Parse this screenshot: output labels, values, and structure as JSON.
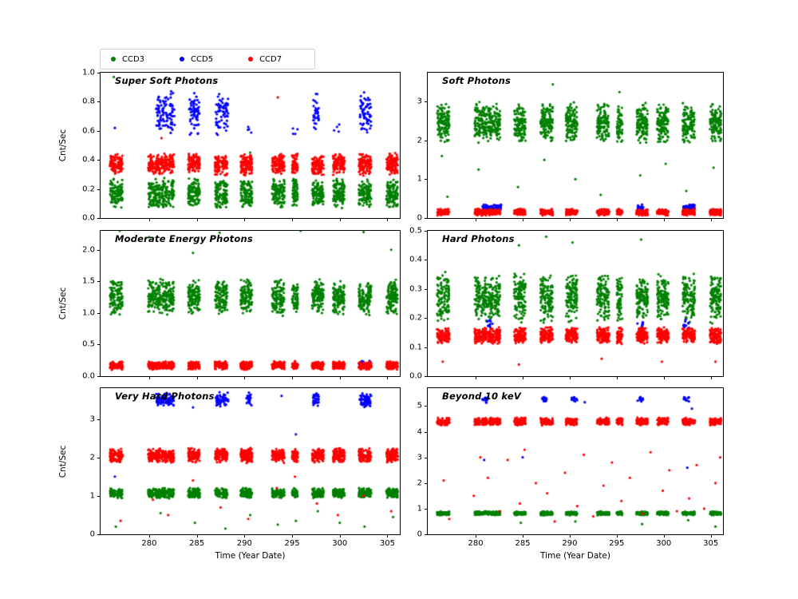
{
  "figure": {
    "background": "#ffffff"
  },
  "legend": {
    "items": [
      {
        "label": "CCD3",
        "color": "#008000"
      },
      {
        "label": "CCD5",
        "color": "#0000ff"
      },
      {
        "label": "CCD7",
        "color": "#ff0000"
      }
    ]
  },
  "windows": {
    "all": [
      276.2,
      276.9,
      280.2,
      280.9,
      281.6,
      282.3,
      284.4,
      285.0,
      287.2,
      287.9,
      289.9,
      290.5,
      293.2,
      293.9,
      295.3,
      297.4,
      298.0,
      299.6,
      300.2,
      302.3,
      303.0,
      305.2,
      305.8
    ],
    "width": 0.6
  },
  "chart_data": [
    {
      "type": "scatter",
      "title": "Super Soft Photons",
      "ylabel": "Cnt/Sec",
      "xlabel": "",
      "xlim": [
        274.9,
        306.3
      ],
      "xticks": [
        280,
        285,
        290,
        295,
        300,
        305
      ],
      "xtick_labels": [
        "280",
        "285",
        "290",
        "295",
        "300",
        "305"
      ],
      "show_xtick_labels": false,
      "ylim": [
        0,
        1.0
      ],
      "ytick_values": [
        0,
        0.2,
        0.4,
        0.6,
        0.8,
        1.0
      ],
      "ytick_labels": [
        "0.0",
        "0.2",
        "0.4",
        "0.6",
        "0.8",
        "1.0"
      ],
      "series": [
        {
          "name": "CCD3",
          "color": "#008000",
          "bands": [
            {
              "windows": "all",
              "y": 0.17,
              "spread": 0.11,
              "n": 55
            }
          ],
          "points": [
            [
              276.3,
              0.97
            ],
            [
              290.6,
              0.45
            ],
            [
              284.7,
              0.42
            ]
          ]
        },
        {
          "name": "CCD5",
          "color": "#0000ff",
          "bands": [
            {
              "windows": [
                281.0,
                281.7,
                282.4,
                284.5,
                285.0,
                287.3,
                288.0,
                297.5,
                302.4,
                303.0
              ],
              "y": 0.72,
              "spread": 0.16,
              "n": 32
            },
            {
              "windows": [
                290.5,
                295.3,
                299.7
              ],
              "y": 0.6,
              "spread": 0.05,
              "n": 4
            }
          ],
          "points": [
            [
              276.4,
              0.62
            ]
          ]
        },
        {
          "name": "CCD7",
          "color": "#ff0000",
          "bands": [
            {
              "windows": "all",
              "y": 0.37,
              "spread": 0.08,
              "n": 55
            }
          ],
          "points": [
            [
              293.5,
              0.83
            ],
            [
              281.3,
              0.55
            ]
          ]
        }
      ]
    },
    {
      "type": "scatter",
      "title": "Soft Photons",
      "ylabel": "",
      "xlabel": "",
      "xlim": [
        274.9,
        306.3
      ],
      "xticks": [
        280,
        285,
        290,
        295,
        300,
        305
      ],
      "xtick_labels": [
        "280",
        "285",
        "290",
        "295",
        "300",
        "305"
      ],
      "show_xtick_labels": false,
      "ylim": [
        0,
        3.75
      ],
      "ytick_values": [
        0,
        1,
        2,
        3
      ],
      "ytick_labels": [
        "0",
        "1",
        "2",
        "3"
      ],
      "series": [
        {
          "name": "CCD3",
          "color": "#008000",
          "bands": [
            {
              "windows": "all",
              "y": 2.45,
              "spread": 0.55,
              "n": 60
            }
          ],
          "points": [
            [
              277.0,
              0.55
            ],
            [
              280.3,
              1.25
            ],
            [
              284.5,
              0.8
            ],
            [
              287.3,
              1.5
            ],
            [
              290.6,
              1.0
            ],
            [
              293.3,
              0.6
            ],
            [
              295.3,
              3.25
            ],
            [
              297.5,
              1.1
            ],
            [
              300.2,
              1.4
            ],
            [
              302.4,
              0.7
            ],
            [
              305.3,
              1.3
            ],
            [
              288.2,
              3.45
            ],
            [
              276.4,
              1.6
            ]
          ]
        },
        {
          "name": "CCD5",
          "color": "#0000ff",
          "bands": [
            {
              "windows": [
                281.0,
                281.7,
                282.4,
                297.5,
                302.4,
                303.0
              ],
              "y": 0.27,
              "spread": 0.09,
              "n": 28
            }
          ],
          "points": []
        },
        {
          "name": "CCD7",
          "color": "#ff0000",
          "bands": [
            {
              "windows": "all",
              "y": 0.15,
              "spread": 0.09,
              "n": 50
            }
          ],
          "points": []
        }
      ]
    },
    {
      "type": "scatter",
      "title": "Moderate Energy Photons",
      "ylabel": "Cnt/Sec",
      "xlabel": "",
      "xlim": [
        274.9,
        306.3
      ],
      "xticks": [
        280,
        285,
        290,
        295,
        300,
        305
      ],
      "xtick_labels": [
        "280",
        "285",
        "290",
        "295",
        "300",
        "305"
      ],
      "show_xtick_labels": false,
      "ylim": [
        0,
        2.3
      ],
      "ytick_values": [
        0,
        0.5,
        1.0,
        1.5,
        2.0
      ],
      "ytick_labels": [
        "0.0",
        "0.5",
        "1.0",
        "1.5",
        "2.0"
      ],
      "series": [
        {
          "name": "CCD3",
          "color": "#008000",
          "bands": [
            {
              "windows": "all",
              "y": 1.25,
              "spread": 0.3,
              "n": 60
            }
          ],
          "points": [
            [
              276.9,
              2.3
            ],
            [
              280.0,
              2.2
            ],
            [
              287.4,
              2.27
            ],
            [
              295.9,
              2.3
            ],
            [
              302.5,
              2.28
            ],
            [
              284.6,
              1.95
            ],
            [
              305.4,
              2.0
            ]
          ]
        },
        {
          "name": "CCD5",
          "color": "#0000ff",
          "bands": [
            {
              "windows": [
                302.3,
                303.0
              ],
              "y": 0.21,
              "spread": 0.05,
              "n": 12
            }
          ],
          "points": [
            [
              281.5,
              0.22
            ],
            [
              297.6,
              0.2
            ]
          ]
        },
        {
          "name": "CCD7",
          "color": "#ff0000",
          "bands": [
            {
              "windows": "all",
              "y": 0.17,
              "spread": 0.07,
              "n": 52
            }
          ],
          "points": []
        }
      ]
    },
    {
      "type": "scatter",
      "title": "Hard Photons",
      "ylabel": "",
      "xlabel": "",
      "xlim": [
        274.9,
        306.3
      ],
      "xticks": [
        280,
        285,
        290,
        295,
        300,
        305
      ],
      "xtick_labels": [
        "280",
        "285",
        "290",
        "295",
        "300",
        "305"
      ],
      "show_xtick_labels": false,
      "ylim": [
        0,
        0.5
      ],
      "ytick_values": [
        0,
        0.1,
        0.2,
        0.3,
        0.4,
        0.5
      ],
      "ytick_labels": [
        "0.0",
        "0.1",
        "0.2",
        "0.3",
        "0.4",
        "0.5"
      ],
      "series": [
        {
          "name": "CCD3",
          "color": "#008000",
          "bands": [
            {
              "windows": "all",
              "y": 0.27,
              "spread": 0.09,
              "n": 60
            }
          ],
          "points": [
            [
              287.5,
              0.48
            ],
            [
              297.6,
              0.47
            ],
            [
              290.3,
              0.46
            ],
            [
              284.6,
              0.45
            ]
          ]
        },
        {
          "name": "CCD5",
          "color": "#0000ff",
          "bands": [
            {
              "windows": [
                281.5,
                297.5,
                302.4
              ],
              "y": 0.18,
              "spread": 0.02,
              "n": 10
            }
          ],
          "points": []
        },
        {
          "name": "CCD7",
          "color": "#ff0000",
          "bands": [
            {
              "windows": "all",
              "y": 0.14,
              "spread": 0.03,
              "n": 55
            }
          ],
          "points": [
            [
              276.5,
              0.05
            ],
            [
              284.6,
              0.04
            ],
            [
              293.4,
              0.06
            ],
            [
              305.5,
              0.05
            ],
            [
              299.8,
              0.05
            ]
          ]
        }
      ]
    },
    {
      "type": "scatter",
      "title": "Very Hard Photons",
      "ylabel": "Cnt/Sec",
      "xlabel": "Time (Year Date)",
      "xlim": [
        274.9,
        306.3
      ],
      "xticks": [
        280,
        285,
        290,
        295,
        300,
        305
      ],
      "xtick_labels": [
        "280",
        "285",
        "290",
        "295",
        "300",
        "305"
      ],
      "show_xtick_labels": true,
      "ylim": [
        0,
        3.8
      ],
      "ytick_values": [
        0,
        1,
        2,
        3
      ],
      "ytick_labels": [
        "0",
        "1",
        "2",
        "3"
      ],
      "series": [
        {
          "name": "CCD3",
          "color": "#008000",
          "bands": [
            {
              "windows": "all",
              "y": 1.07,
              "spread": 0.14,
              "n": 55
            }
          ],
          "points": [
            [
              276.5,
              0.2
            ],
            [
              281.2,
              0.55
            ],
            [
              284.8,
              0.3
            ],
            [
              288.0,
              0.15
            ],
            [
              290.6,
              0.5
            ],
            [
              293.5,
              0.25
            ],
            [
              297.7,
              0.6
            ],
            [
              300.0,
              0.3
            ],
            [
              302.6,
              0.2
            ],
            [
              305.6,
              0.45
            ],
            [
              295.4,
              0.35
            ]
          ]
        },
        {
          "name": "CCD5",
          "color": "#0000ff",
          "bands": [
            {
              "windows": [
                281.0,
                281.7,
                282.3,
                287.3,
                288.0,
                290.5,
                297.5,
                302.4,
                303.0
              ],
              "y": 3.5,
              "spread": 0.2,
              "n": 30
            }
          ],
          "points": [
            [
              284.6,
              3.3
            ],
            [
              295.4,
              2.6
            ],
            [
              276.4,
              1.5
            ],
            [
              293.9,
              3.6
            ]
          ]
        },
        {
          "name": "CCD7",
          "color": "#ff0000",
          "bands": [
            {
              "windows": "all",
              "y": 2.05,
              "spread": 0.2,
              "n": 55
            }
          ],
          "points": [
            [
              277.0,
              0.35
            ],
            [
              280.4,
              0.9
            ],
            [
              282.0,
              0.5
            ],
            [
              284.6,
              1.4
            ],
            [
              287.5,
              0.7
            ],
            [
              290.4,
              0.4
            ],
            [
              293.4,
              1.2
            ],
            [
              297.6,
              0.8
            ],
            [
              299.8,
              0.5
            ],
            [
              302.5,
              1.0
            ],
            [
              305.4,
              0.6
            ],
            [
              295.3,
              1.5
            ]
          ]
        }
      ]
    },
    {
      "type": "scatter",
      "title": "Beyond 10 keV",
      "ylabel": "",
      "xlabel": "Time (Year Date)",
      "xlim": [
        274.9,
        306.3
      ],
      "xticks": [
        280,
        285,
        290,
        295,
        300,
        305
      ],
      "xtick_labels": [
        "280",
        "285",
        "290",
        "295",
        "300",
        "305"
      ],
      "show_xtick_labels": true,
      "ylim": [
        0,
        5.7
      ],
      "ytick_values": [
        0,
        1,
        2,
        3,
        4,
        5
      ],
      "ytick_labels": [
        "0",
        "1",
        "2",
        "3",
        "4",
        "5"
      ],
      "series": [
        {
          "name": "CCD3",
          "color": "#008000",
          "bands": [
            {
              "windows": "all",
              "y": 0.82,
              "spread": 0.08,
              "n": 45
            }
          ],
          "points": [
            [
              290.6,
              0.5
            ],
            [
              297.7,
              0.4
            ],
            [
              302.6,
              0.55
            ],
            [
              284.8,
              0.45
            ],
            [
              305.5,
              0.3
            ]
          ]
        },
        {
          "name": "CCD5",
          "color": "#0000ff",
          "bands": [
            {
              "windows": [
                281.0,
                287.3,
                290.5,
                297.5,
                302.4
              ],
              "y": 5.25,
              "spread": 0.12,
              "n": 14
            }
          ],
          "points": [
            [
              285.0,
              3.0
            ],
            [
              302.5,
              2.6
            ],
            [
              280.9,
              2.9
            ],
            [
              291.6,
              5.15
            ],
            [
              303.0,
              4.9
            ]
          ]
        },
        {
          "name": "CCD7",
          "color": "#ff0000",
          "bands": [
            {
              "windows": "all",
              "y": 4.4,
              "spread": 0.16,
              "n": 45
            }
          ],
          "points": [
            [
              276.6,
              2.1
            ],
            [
              277.2,
              0.6
            ],
            [
              279.8,
              1.5
            ],
            [
              280.5,
              3.0
            ],
            [
              281.3,
              2.2
            ],
            [
              282.6,
              0.9
            ],
            [
              283.4,
              2.9
            ],
            [
              284.7,
              1.2
            ],
            [
              285.2,
              3.3
            ],
            [
              286.4,
              2.0
            ],
            [
              287.6,
              1.6
            ],
            [
              288.4,
              0.5
            ],
            [
              289.5,
              2.4
            ],
            [
              290.8,
              1.1
            ],
            [
              291.5,
              3.1
            ],
            [
              292.5,
              0.7
            ],
            [
              293.6,
              1.9
            ],
            [
              294.5,
              2.8
            ],
            [
              295.5,
              1.3
            ],
            [
              296.4,
              2.2
            ],
            [
              297.8,
              0.8
            ],
            [
              298.6,
              3.2
            ],
            [
              299.9,
              1.7
            ],
            [
              300.6,
              2.5
            ],
            [
              301.4,
              0.9
            ],
            [
              302.7,
              1.4
            ],
            [
              303.5,
              2.7
            ],
            [
              304.3,
              1.0
            ],
            [
              305.5,
              2.0
            ],
            [
              306.0,
              3.0
            ]
          ]
        }
      ]
    }
  ]
}
